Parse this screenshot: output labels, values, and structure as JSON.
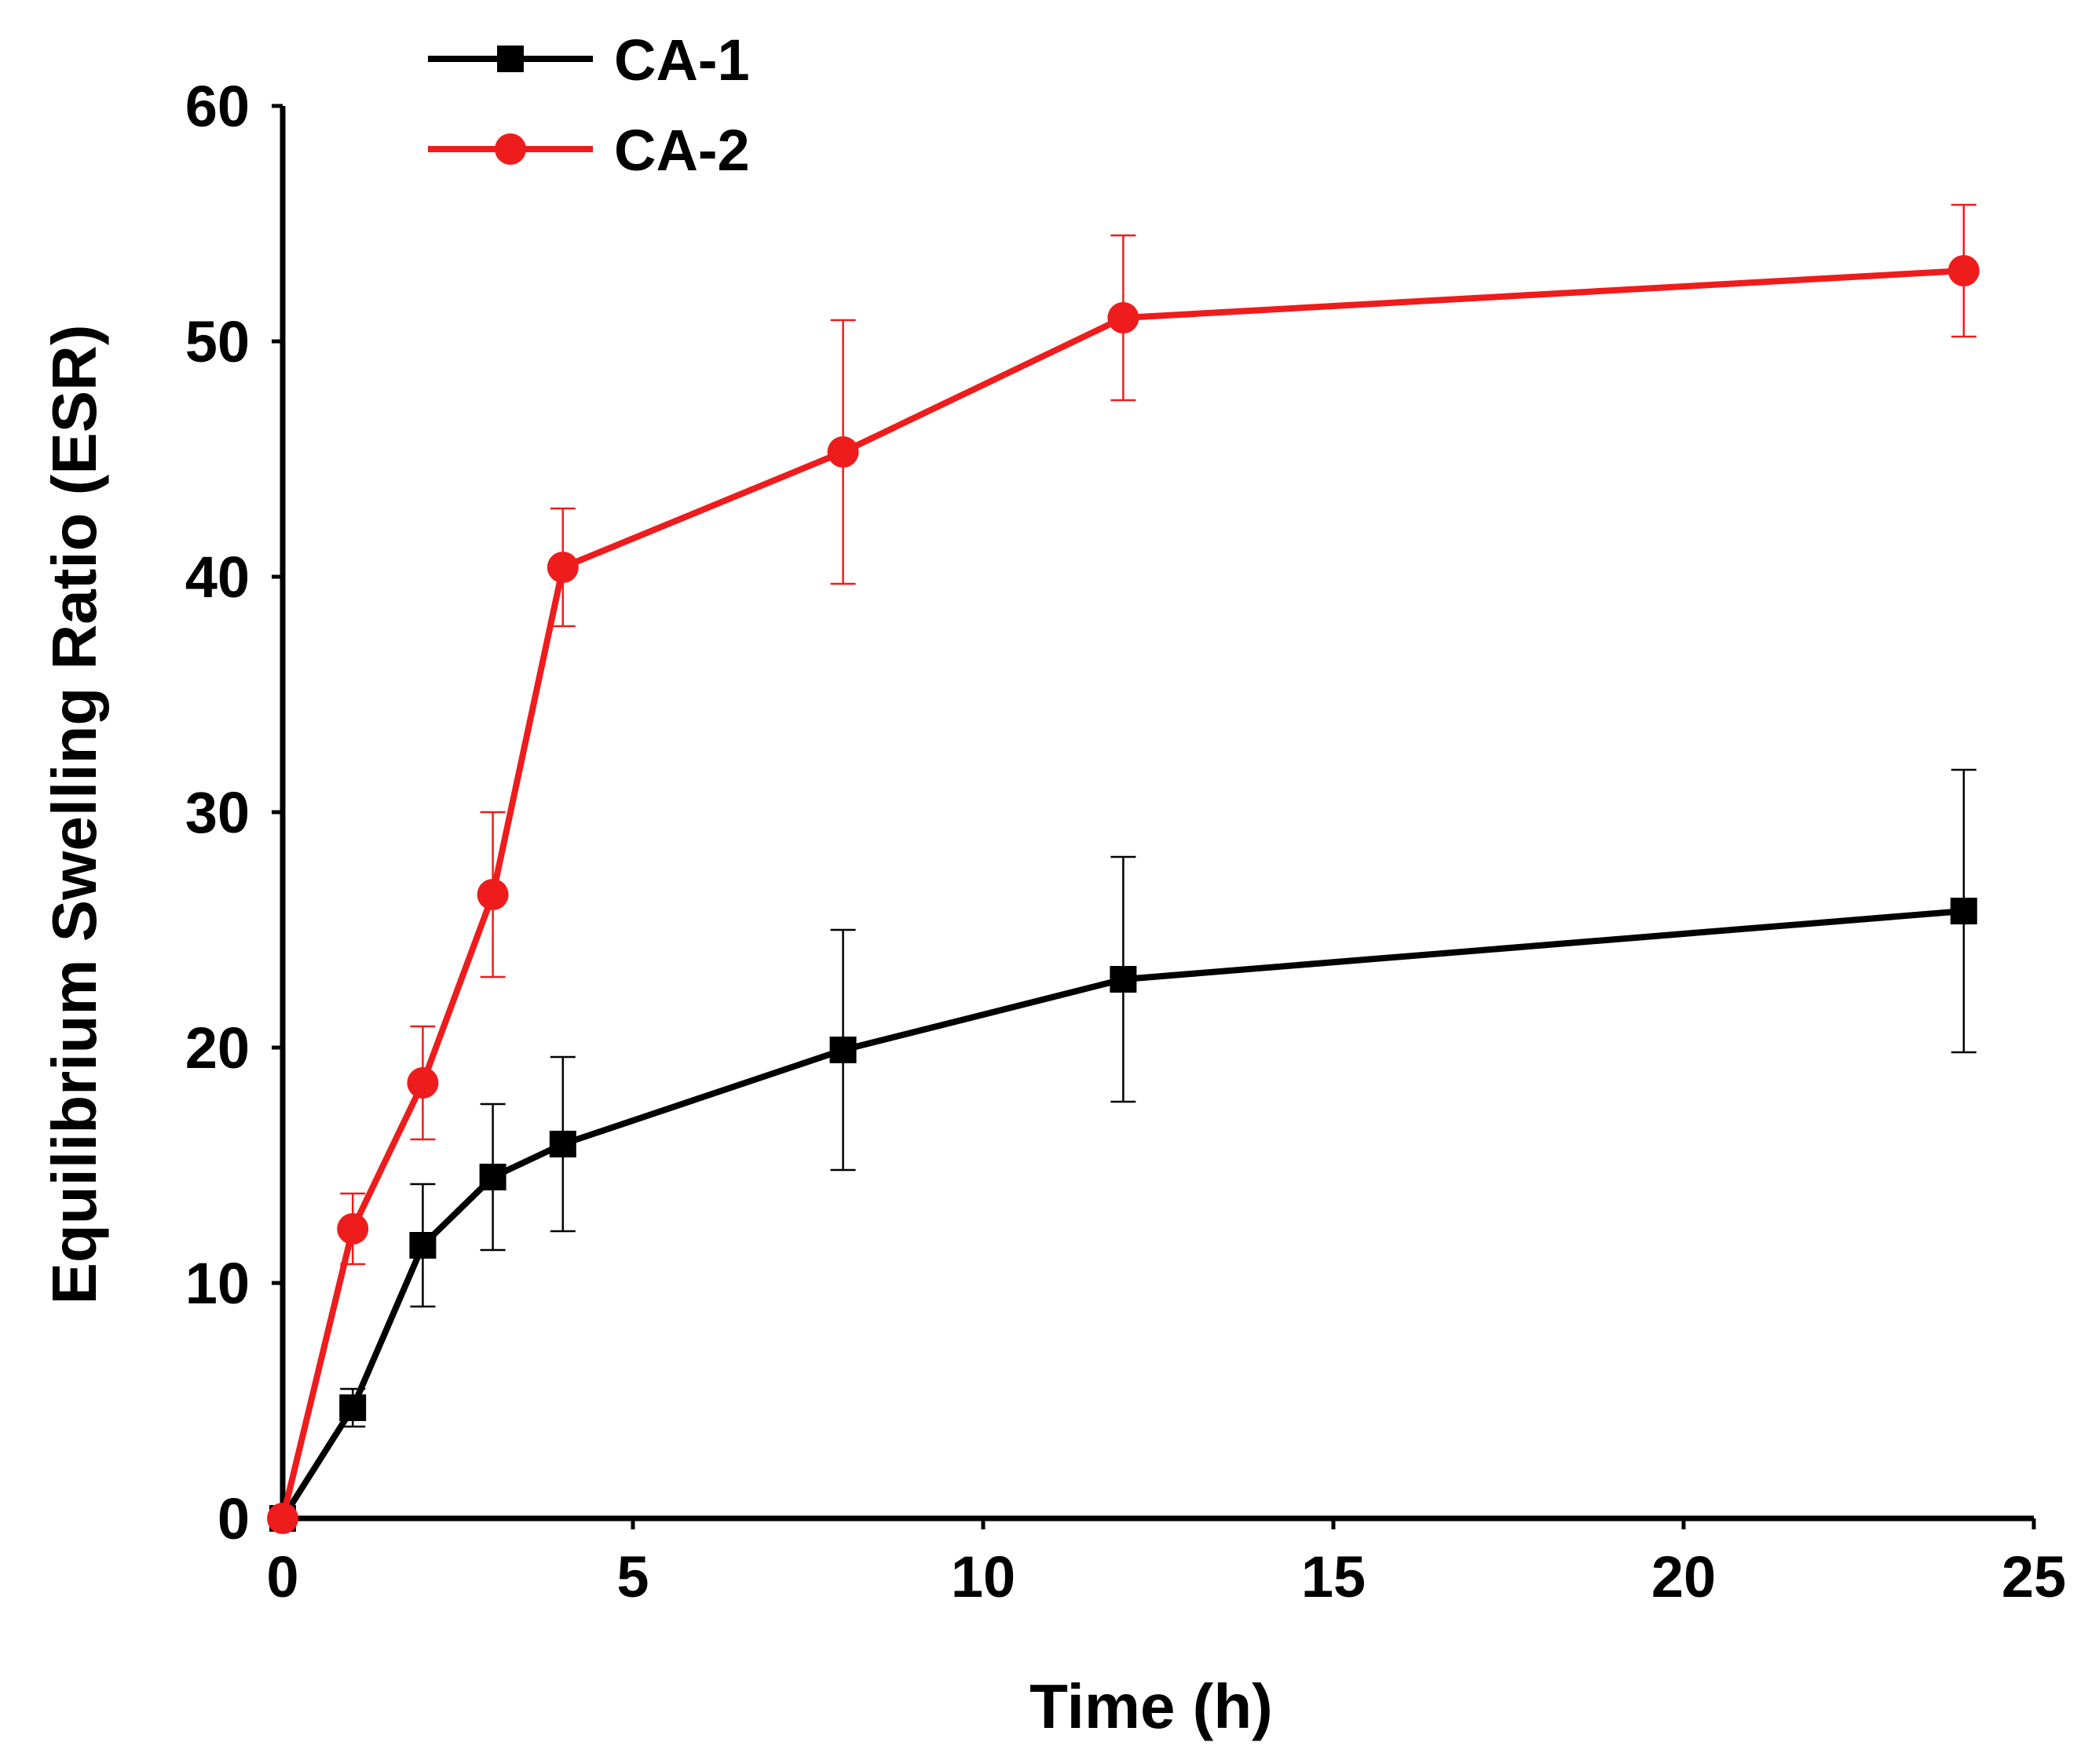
{
  "chart_data": {
    "type": "line",
    "title": "",
    "xlabel": "Time (h)",
    "ylabel": "Equilibrium Swelling Ratio (ESR)",
    "xlim": [
      0,
      25
    ],
    "ylim": [
      0,
      60
    ],
    "xticks": [
      0,
      5,
      10,
      15,
      20,
      25
    ],
    "yticks": [
      0,
      10,
      20,
      30,
      40,
      50,
      60
    ],
    "grid": false,
    "legend_position": "top-left",
    "series": [
      {
        "name": "CA-1",
        "color": "#000000",
        "marker": "square",
        "x": [
          0,
          1,
          2,
          3,
          4,
          8,
          12,
          24
        ],
        "y": [
          0,
          4.7,
          11.6,
          14.5,
          15.9,
          19.9,
          22.9,
          25.8
        ],
        "err": [
          0,
          0.8,
          2.6,
          3.1,
          3.7,
          5.1,
          5.2,
          6.0
        ]
      },
      {
        "name": "CA-2",
        "color": "#ee1c1c",
        "marker": "circle",
        "x": [
          0,
          1,
          2,
          3,
          4,
          8,
          12,
          24
        ],
        "y": [
          0,
          12.3,
          18.5,
          26.5,
          40.4,
          45.3,
          51.0,
          53.0
        ],
        "err": [
          0,
          1.5,
          2.4,
          3.5,
          2.5,
          5.6,
          3.5,
          2.8
        ]
      }
    ]
  }
}
